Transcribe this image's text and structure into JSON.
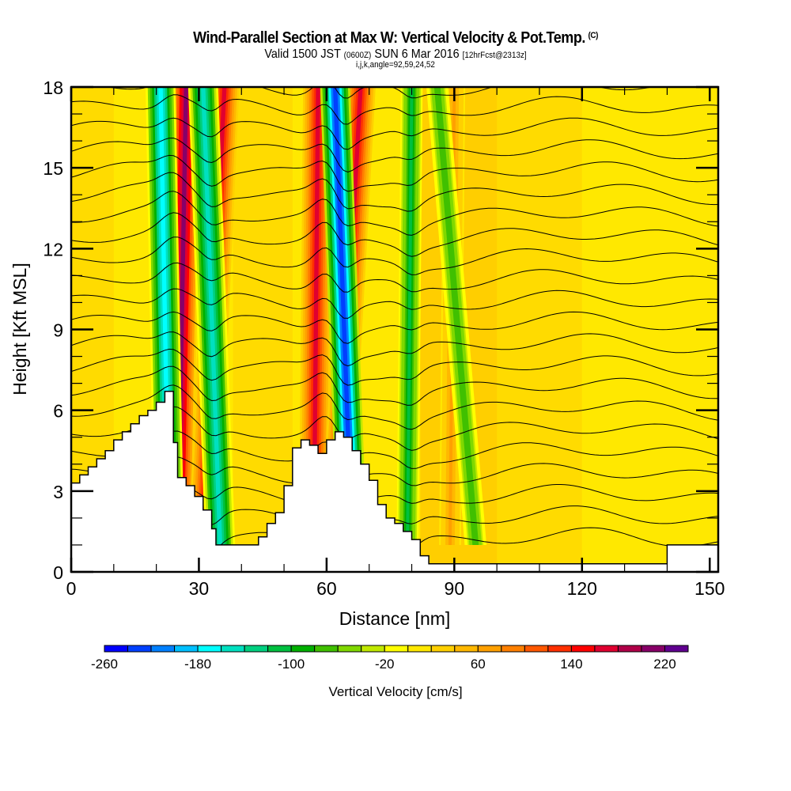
{
  "title": {
    "main": "Wind-Parallel Section at Max W: Vertical Velocity & Pot.Temp.",
    "copyright": "(C)",
    "valid_prefix": "Valid 1500 JST",
    "valid_utc": "(0600Z)",
    "valid_date": "SUN 6 Mar 2016",
    "forecast": "[12hrFcst@2313z]",
    "indices": "i,j,k,angle=92,59,24,52"
  },
  "chart_data": {
    "type": "heatmap",
    "title": "Wind-Parallel Section at Max W: Vertical Velocity & Pot.Temp.",
    "xlabel": "Distance [nm]",
    "ylabel": "Height [Kft MSL]",
    "xlim": [
      0,
      152
    ],
    "ylim": [
      0,
      18
    ],
    "x_ticks": [
      0,
      30,
      60,
      90,
      120,
      150
    ],
    "x_tick_labels": [
      "0",
      "30",
      "60",
      "90",
      "120",
      "150"
    ],
    "y_ticks": [
      0,
      3,
      6,
      9,
      12,
      15,
      18
    ],
    "y_tick_labels": [
      "0",
      "3",
      "6",
      "9",
      "12",
      "15",
      "18"
    ],
    "colorbar": {
      "label": "Vertical Velocity [cm/s]",
      "min": -260,
      "max": 240,
      "step": 20,
      "tick_labels": [
        "-260",
        "-180",
        "-100",
        "-20",
        "60",
        "140",
        "220"
      ],
      "colors": [
        "#0000ff",
        "#0040ff",
        "#0080ff",
        "#00c0ff",
        "#00ffff",
        "#00e0c0",
        "#00d080",
        "#00c040",
        "#00b000",
        "#40c000",
        "#80d800",
        "#c0e800",
        "#ffff00",
        "#ffe800",
        "#ffd000",
        "#ffb800",
        "#ffa000",
        "#ff8000",
        "#ff5800",
        "#ff3000",
        "#ff0000",
        "#e00030",
        "#b00048",
        "#880068",
        "#600090"
      ]
    },
    "terrain_kft": {
      "x": [
        0,
        2,
        4,
        6,
        8,
        10,
        12,
        14,
        16,
        18,
        20,
        22,
        24,
        25,
        27,
        29,
        31,
        33,
        34,
        36,
        38,
        40,
        42,
        44,
        46,
        48,
        50,
        52,
        54,
        56,
        58,
        60,
        62,
        64,
        66,
        68,
        70,
        72,
        74,
        76,
        78,
        80,
        82,
        84,
        86,
        90,
        100,
        110,
        120,
        130,
        140,
        150,
        152
      ],
      "y": [
        3.3,
        3.6,
        3.9,
        4.2,
        4.5,
        4.9,
        5.2,
        5.5,
        5.8,
        6.0,
        6.3,
        6.7,
        4.8,
        3.5,
        3.2,
        2.8,
        2.3,
        1.6,
        1.0,
        1.0,
        1.0,
        1.0,
        1.0,
        1.3,
        1.8,
        2.2,
        3.2,
        4.6,
        4.9,
        4.7,
        4.4,
        4.9,
        5.2,
        5.0,
        4.5,
        4.0,
        3.4,
        2.5,
        2.0,
        1.8,
        1.5,
        1.2,
        0.6,
        0.3,
        0.3,
        0.3,
        0.3,
        0.3,
        0.3,
        0.3,
        1.0,
        1.0,
        1.0
      ]
    },
    "updraft_bands": [
      {
        "x_top": 27,
        "x_bottom": 25,
        "value": 200
      },
      {
        "x_top": 36,
        "x_bottom": 31,
        "value": 160
      },
      {
        "x_top": 58,
        "x_bottom": 57,
        "value": 160
      },
      {
        "x_top": 68,
        "x_bottom": 62,
        "value": 160
      },
      {
        "x_top": 90,
        "x_bottom": 89,
        "value": 60
      }
    ],
    "downdraft_bands": [
      {
        "x_top": 21,
        "x_bottom": 23,
        "value": -180
      },
      {
        "x_top": 31,
        "x_bottom": 35,
        "value": -160
      },
      {
        "x_top": 62,
        "x_bottom": 66,
        "value": -240
      },
      {
        "x_top": 80,
        "x_bottom": 79,
        "value": -110
      },
      {
        "x_top": 86,
        "x_bottom": 95,
        "value": -80
      }
    ],
    "pot_temp_contours": {
      "label": "Potential Temperature",
      "levels_count": 22,
      "spacing_kft": 0.8
    }
  }
}
